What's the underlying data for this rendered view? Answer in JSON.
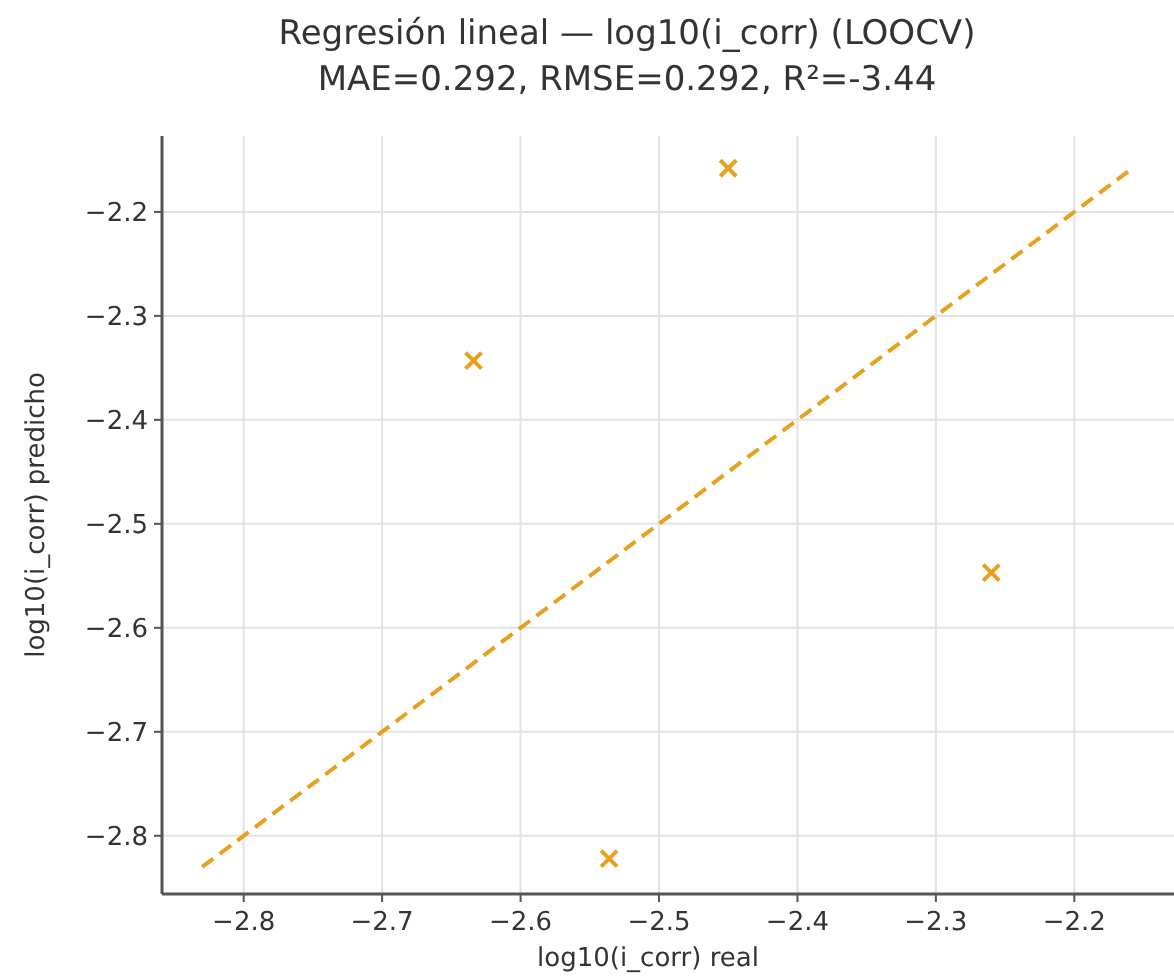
{
  "chart_data": {
    "type": "scatter",
    "title": "Regresión lineal — log10(i_corr) (LOOCV)",
    "subtitle": "MAE=0.292, RMSE=0.292, R²=-3.44",
    "xlabel": "log10(i_corr) real",
    "ylabel": "log10(i_corr) predicho",
    "x": [
      -2.634,
      -2.45,
      -2.26,
      -2.536
    ],
    "series": [
      {
        "color": "#e8a020",
        "values": [
          -2.343,
          -2.158,
          -2.547,
          -2.822
        ],
        "marker": "cross"
      },
      {
        "type": "line",
        "color": "#e8a020",
        "x": [
          -2.83,
          -2.16
        ],
        "values": [
          -2.83,
          -2.16
        ],
        "line_style": "dashed",
        "marker": "none"
      }
    ],
    "xlim": [
      -2.859,
      -2.128
    ],
    "ylim": [
      -2.856,
      -2.127
    ],
    "xticks": [
      {
        "value": -2.8,
        "label": "−2.8"
      },
      {
        "value": -2.7,
        "label": "−2.7"
      },
      {
        "value": -2.6,
        "label": "−2.6"
      },
      {
        "value": -2.5,
        "label": "−2.5"
      },
      {
        "value": -2.4,
        "label": "−2.4"
      },
      {
        "value": -2.3,
        "label": "−2.3"
      },
      {
        "value": -2.2,
        "label": "−2.2"
      }
    ],
    "yticks": [
      {
        "value": -2.8,
        "label": "−2.8"
      },
      {
        "value": -2.7,
        "label": "−2.7"
      },
      {
        "value": -2.6,
        "label": "−2.6"
      },
      {
        "value": -2.5,
        "label": "−2.5"
      },
      {
        "value": -2.4,
        "label": "−2.4"
      },
      {
        "value": -2.3,
        "label": "−2.3"
      },
      {
        "value": -2.2,
        "label": "−2.2"
      }
    ],
    "grid": true
  }
}
